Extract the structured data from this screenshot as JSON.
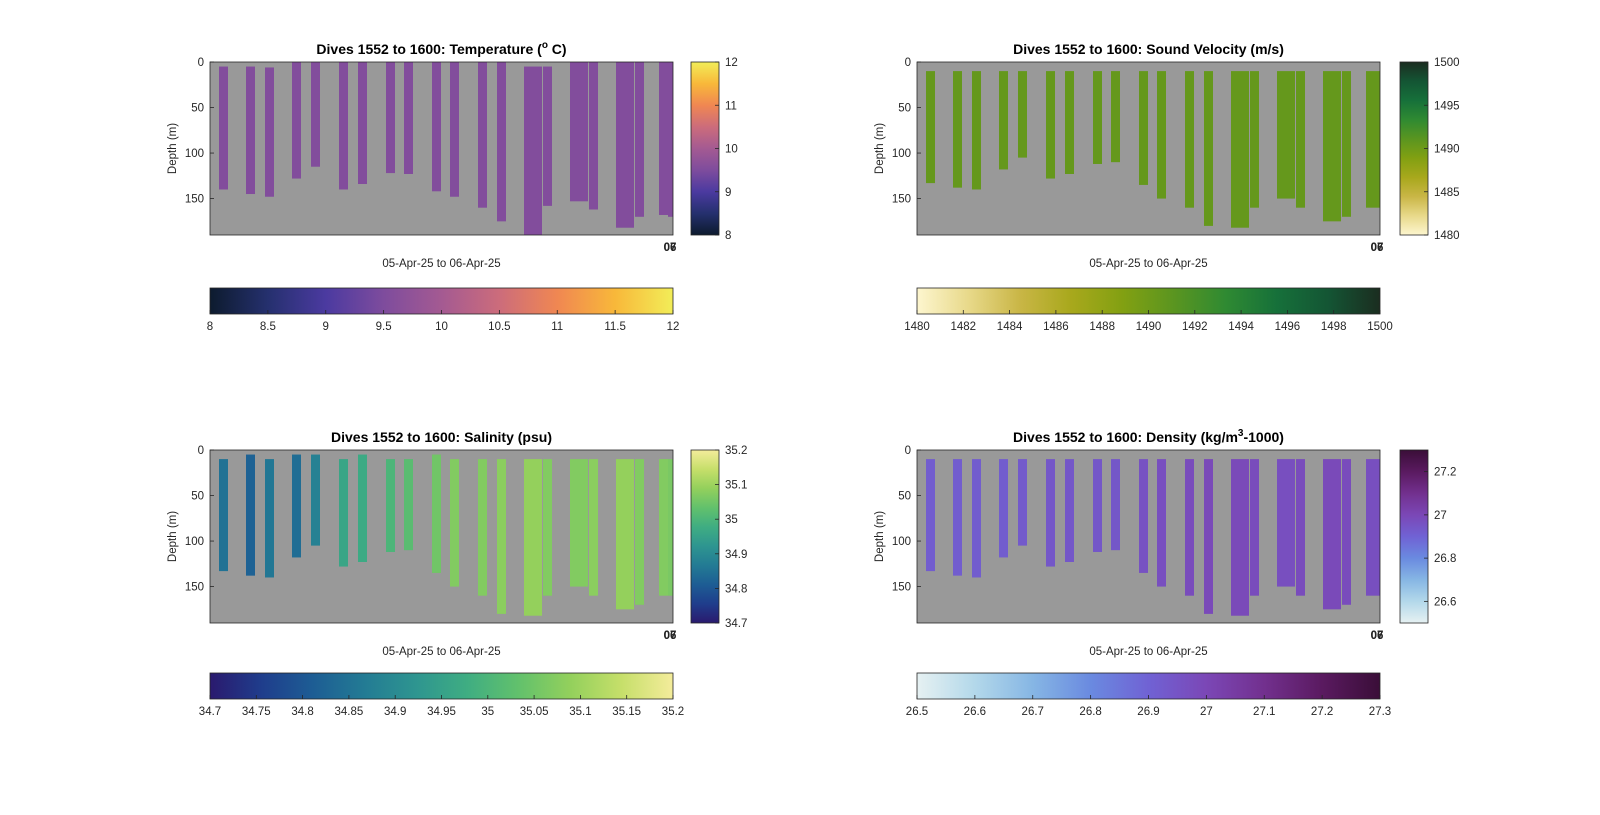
{
  "chart_data": [
    {
      "type": "heatmap",
      "title": "Dives 1552 to 1600: Temperature (",
      "title_sup": "o",
      "title_tail": " C)",
      "xlabel": "05-Apr-25 to 06-Apr-25",
      "ylabel": "Depth (m)",
      "y_ticks": [
        "0",
        "50",
        "100",
        "150"
      ],
      "ylim": [
        0,
        190
      ],
      "x_tick_labels": [
        "06",
        "07"
      ],
      "side_colorbar": {
        "ticks": [
          "8",
          "9",
          "10",
          "11",
          "12"
        ],
        "range": [
          8,
          12
        ]
      },
      "bottom_colorbar": {
        "ticks": [
          "8",
          "8.5",
          "9",
          "9.5",
          "10",
          "10.5",
          "11",
          "11.5",
          "12"
        ],
        "range": [
          8,
          12
        ]
      },
      "colormap": [
        "#0d1b2e",
        "#25306e",
        "#4b3aa0",
        "#7e4c9d",
        "#a45a92",
        "#cc6c7b",
        "#f08752",
        "#f8b83a",
        "#f2ed58"
      ],
      "background": "#999999",
      "field_value": 9.55,
      "casts": [
        {
          "top": 5,
          "bottom": 140
        },
        {
          "top": 5,
          "bottom": 145
        },
        {
          "top": 6,
          "bottom": 148
        },
        {
          "top": 0,
          "bottom": 128
        },
        {
          "top": 0,
          "bottom": 115
        },
        {
          "top": 0,
          "bottom": 140
        },
        {
          "top": 0,
          "bottom": 134
        },
        {
          "top": 0,
          "bottom": 122
        },
        {
          "top": 0,
          "bottom": 123
        },
        {
          "top": 0,
          "bottom": 142
        },
        {
          "top": 0,
          "bottom": 148
        },
        {
          "top": 0,
          "bottom": 160
        },
        {
          "top": 0,
          "bottom": 175
        },
        {
          "top": 5,
          "bottom": 190
        },
        {
          "top": 5,
          "bottom": 158
        },
        {
          "top": 0,
          "bottom": 153
        },
        {
          "top": 0,
          "bottom": 162
        },
        {
          "top": 0,
          "bottom": 182
        },
        {
          "top": 0,
          "bottom": 170
        },
        {
          "top": 0,
          "bottom": 168
        },
        {
          "top": 0,
          "bottom": 170
        }
      ]
    },
    {
      "type": "heatmap",
      "title": "Dives 1552 to 1600: Sound Velocity (m/s)",
      "title_sup": "",
      "title_tail": "",
      "xlabel": "05-Apr-25 to 06-Apr-25",
      "ylabel": "Depth (m)",
      "y_ticks": [
        "0",
        "50",
        "100",
        "150"
      ],
      "ylim": [
        0,
        190
      ],
      "x_tick_labels": [
        "06",
        "07"
      ],
      "side_colorbar": {
        "ticks": [
          "1480",
          "1485",
          "1490",
          "1495",
          "1500"
        ],
        "range": [
          1480,
          1500
        ]
      },
      "bottom_colorbar": {
        "ticks": [
          "1480",
          "1482",
          "1484",
          "1486",
          "1488",
          "1490",
          "1492",
          "1494",
          "1496",
          "1498",
          "1500"
        ],
        "range": [
          1480,
          1500
        ]
      },
      "colormap": [
        "#fdf6cf",
        "#e8d98a",
        "#c9b646",
        "#a8a81c",
        "#82a012",
        "#5a9520",
        "#2f8a32",
        "#16703a",
        "#145534",
        "#1b2d20"
      ],
      "background": "#999999",
      "field_value": 1490.5,
      "casts": [
        {
          "top": 10,
          "bottom": 133
        },
        {
          "top": 10,
          "bottom": 138
        },
        {
          "top": 10,
          "bottom": 140
        },
        {
          "top": 10,
          "bottom": 118
        },
        {
          "top": 10,
          "bottom": 105
        },
        {
          "top": 10,
          "bottom": 128
        },
        {
          "top": 10,
          "bottom": 123
        },
        {
          "top": 10,
          "bottom": 112
        },
        {
          "top": 10,
          "bottom": 110
        },
        {
          "top": 10,
          "bottom": 135
        },
        {
          "top": 10,
          "bottom": 150
        },
        {
          "top": 10,
          "bottom": 160
        },
        {
          "top": 10,
          "bottom": 180
        },
        {
          "top": 10,
          "bottom": 182
        },
        {
          "top": 10,
          "bottom": 160
        },
        {
          "top": 10,
          "bottom": 150
        },
        {
          "top": 10,
          "bottom": 160
        },
        {
          "top": 10,
          "bottom": 175
        },
        {
          "top": 10,
          "bottom": 170
        },
        {
          "top": 10,
          "bottom": 160
        },
        {
          "top": 10,
          "bottom": 160
        }
      ]
    },
    {
      "type": "heatmap",
      "title": "Dives 1552 to 1600: Salinity (psu)",
      "title_sup": "",
      "title_tail": "",
      "xlabel": "05-Apr-25 to 06-Apr-25",
      "ylabel": "Depth (m)",
      "y_ticks": [
        "0",
        "50",
        "100",
        "150"
      ],
      "ylim": [
        0,
        190
      ],
      "x_tick_labels": [
        "06",
        "07"
      ],
      "side_colorbar": {
        "ticks": [
          "34.7",
          "34.8",
          "34.9",
          "35",
          "35.1",
          "35.2"
        ],
        "range": [
          34.7,
          35.2
        ]
      },
      "bottom_colorbar": {
        "ticks": [
          "34.7",
          "34.75",
          "34.8",
          "34.85",
          "34.9",
          "34.95",
          "35",
          "35.05",
          "35.1",
          "35.15",
          "35.2"
        ],
        "range": [
          34.7,
          35.2
        ]
      },
      "colormap": [
        "#2a1a6e",
        "#1f3d8c",
        "#1d5d94",
        "#237b94",
        "#2e9590",
        "#3fad82",
        "#62c16c",
        "#93d05c",
        "#c6df6a",
        "#f4ec9b"
      ],
      "background": "#999999",
      "field_value": 35.0,
      "casts": [
        {
          "top": 10,
          "bottom": 133,
          "value": 34.85
        },
        {
          "top": 5,
          "bottom": 138,
          "value": 34.82
        },
        {
          "top": 10,
          "bottom": 140,
          "value": 34.86
        },
        {
          "top": 5,
          "bottom": 118,
          "value": 34.84
        },
        {
          "top": 5,
          "bottom": 105,
          "value": 34.88
        },
        {
          "top": 10,
          "bottom": 128,
          "value": 34.96
        },
        {
          "top": 5,
          "bottom": 123,
          "value": 34.97
        },
        {
          "top": 10,
          "bottom": 112,
          "value": 35.0
        },
        {
          "top": 10,
          "bottom": 110,
          "value": 35.02
        },
        {
          "top": 5,
          "bottom": 135,
          "value": 35.05
        },
        {
          "top": 10,
          "bottom": 150,
          "value": 35.07
        },
        {
          "top": 10,
          "bottom": 160,
          "value": 35.07
        },
        {
          "top": 10,
          "bottom": 180,
          "value": 35.08
        },
        {
          "top": 10,
          "bottom": 182,
          "value": 35.09
        },
        {
          "top": 10,
          "bottom": 160,
          "value": 35.07
        },
        {
          "top": 10,
          "bottom": 150,
          "value": 35.07
        },
        {
          "top": 10,
          "bottom": 160,
          "value": 35.08
        },
        {
          "top": 10,
          "bottom": 175,
          "value": 35.09
        },
        {
          "top": 10,
          "bottom": 170,
          "value": 35.07
        },
        {
          "top": 10,
          "bottom": 160,
          "value": 35.07
        },
        {
          "top": 10,
          "bottom": 160,
          "value": 35.06
        }
      ]
    },
    {
      "type": "heatmap",
      "title": "Dives 1552 to 1600: Density (kg/m",
      "title_sup": "3",
      "title_tail": "-1000)",
      "xlabel": "05-Apr-25 to 06-Apr-25",
      "ylabel": "Depth (m)",
      "y_ticks": [
        "0",
        "50",
        "100",
        "150"
      ],
      "ylim": [
        0,
        190
      ],
      "x_tick_labels": [
        "06",
        "07"
      ],
      "side_colorbar": {
        "ticks": [
          "26.6",
          "26.8",
          "27",
          "27.2"
        ],
        "range": [
          26.5,
          27.3
        ]
      },
      "bottom_colorbar": {
        "ticks": [
          "26.5",
          "26.6",
          "26.7",
          "26.8",
          "26.9",
          "27",
          "27.1",
          "27.2",
          "27.3"
        ],
        "range": [
          26.5,
          27.3
        ]
      },
      "colormap": [
        "#e6f1f2",
        "#b3d8ea",
        "#86b6e4",
        "#6a8ae0",
        "#7062d4",
        "#7b47b6",
        "#72308e",
        "#5a1a60",
        "#3a0e38"
      ],
      "background": "#999999",
      "field_value": 26.96,
      "casts": [
        {
          "top": 10,
          "bottom": 133,
          "value": 26.92
        },
        {
          "top": 10,
          "bottom": 138,
          "value": 26.92
        },
        {
          "top": 10,
          "bottom": 140,
          "value": 26.92
        },
        {
          "top": 10,
          "bottom": 118,
          "value": 26.92
        },
        {
          "top": 10,
          "bottom": 105,
          "value": 26.93
        },
        {
          "top": 10,
          "bottom": 128,
          "value": 26.94
        },
        {
          "top": 10,
          "bottom": 123,
          "value": 26.94
        },
        {
          "top": 10,
          "bottom": 112,
          "value": 26.94
        },
        {
          "top": 10,
          "bottom": 110,
          "value": 26.94
        },
        {
          "top": 10,
          "bottom": 135,
          "value": 26.96
        },
        {
          "top": 10,
          "bottom": 150,
          "value": 26.97
        },
        {
          "top": 10,
          "bottom": 160,
          "value": 26.98
        },
        {
          "top": 10,
          "bottom": 180,
          "value": 26.99
        },
        {
          "top": 10,
          "bottom": 182,
          "value": 26.99
        },
        {
          "top": 10,
          "bottom": 160,
          "value": 26.98
        },
        {
          "top": 10,
          "bottom": 150,
          "value": 26.97
        },
        {
          "top": 10,
          "bottom": 160,
          "value": 26.98
        },
        {
          "top": 10,
          "bottom": 175,
          "value": 26.99
        },
        {
          "top": 10,
          "bottom": 170,
          "value": 26.98
        },
        {
          "top": 10,
          "bottom": 160,
          "value": 26.97
        },
        {
          "top": 10,
          "bottom": 160,
          "value": 26.97
        }
      ]
    }
  ]
}
